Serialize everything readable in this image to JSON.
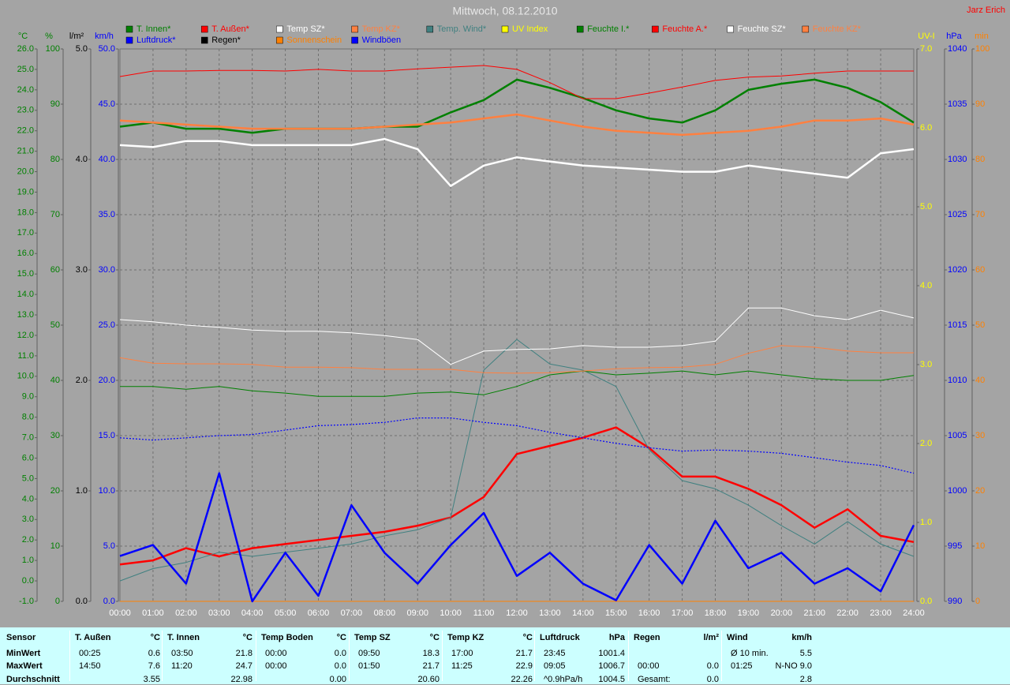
{
  "chart_data": {
    "type": "line",
    "title": "Mittwoch, 08.12.2010",
    "credit": "Jarz Erich",
    "xlim": [
      0,
      24
    ],
    "xticks": [
      {
        "value": 0,
        "label": "00:00"
      },
      {
        "value": 1,
        "label": "01:00"
      },
      {
        "value": 2,
        "label": "02:00"
      },
      {
        "value": 3,
        "label": "03:00"
      },
      {
        "value": 4,
        "label": "04:00"
      },
      {
        "value": 5,
        "label": "05:00"
      },
      {
        "value": 6,
        "label": "06:00"
      },
      {
        "value": 7,
        "label": "07:00"
      },
      {
        "value": 8,
        "label": "08:00"
      },
      {
        "value": 9,
        "label": "09:00"
      },
      {
        "value": 10,
        "label": "10:00"
      },
      {
        "value": 11,
        "label": "11:00"
      },
      {
        "value": 12,
        "label": "12:00"
      },
      {
        "value": 13,
        "label": "13:00"
      },
      {
        "value": 14,
        "label": "14:00"
      },
      {
        "value": 15,
        "label": "15:00"
      },
      {
        "value": 16,
        "label": "16:00"
      },
      {
        "value": 17,
        "label": "17:00"
      },
      {
        "value": 18,
        "label": "18:00"
      },
      {
        "value": 19,
        "label": "19:00"
      },
      {
        "value": 20,
        "label": "20:00"
      },
      {
        "value": 21,
        "label": "21:00"
      },
      {
        "value": 22,
        "label": "22:00"
      },
      {
        "value": 23,
        "label": "23:00"
      },
      {
        "value": 24,
        "label": "24:00"
      }
    ],
    "grid": true,
    "grid_axis": "hum",
    "axes": [
      {
        "id": "temp",
        "label": "°C",
        "side": "left",
        "color": "#008000",
        "lim": [
          -1,
          26
        ],
        "ticks": [
          {
            "value": -1,
            "label": "-1.0"
          },
          {
            "value": 0,
            "label": "0.0"
          },
          {
            "value": 1,
            "label": "1.0"
          },
          {
            "value": 2,
            "label": "2.0"
          },
          {
            "value": 3,
            "label": "3.0"
          },
          {
            "value": 4,
            "label": "4.0"
          },
          {
            "value": 5,
            "label": "5.0"
          },
          {
            "value": 6,
            "label": "6.0"
          },
          {
            "value": 7,
            "label": "7.0"
          },
          {
            "value": 8,
            "label": "8.0"
          },
          {
            "value": 9,
            "label": "9.0"
          },
          {
            "value": 10,
            "label": "10.0"
          },
          {
            "value": 11,
            "label": "11.0"
          },
          {
            "value": 12,
            "label": "12.0"
          },
          {
            "value": 13,
            "label": "13.0"
          },
          {
            "value": 14,
            "label": "14.0"
          },
          {
            "value": 15,
            "label": "15.0"
          },
          {
            "value": 16,
            "label": "16.0"
          },
          {
            "value": 17,
            "label": "17.0"
          },
          {
            "value": 18,
            "label": "18.0"
          },
          {
            "value": 19,
            "label": "19.0"
          },
          {
            "value": 20,
            "label": "20.0"
          },
          {
            "value": 21,
            "label": "21.0"
          },
          {
            "value": 22,
            "label": "22.0"
          },
          {
            "value": 23,
            "label": "23.0"
          },
          {
            "value": 24,
            "label": "24.0"
          },
          {
            "value": 25,
            "label": "25.0"
          },
          {
            "value": 26,
            "label": "26.0"
          }
        ]
      },
      {
        "id": "hum",
        "label": "%",
        "side": "left",
        "color": "#008000",
        "lim": [
          0,
          100
        ],
        "ticks": [
          0,
          10,
          20,
          30,
          40,
          50,
          60,
          70,
          80,
          90,
          100
        ]
      },
      {
        "id": "rain",
        "label": "l/m²",
        "side": "left",
        "color": "#000000",
        "lim": [
          0,
          5
        ],
        "ticks": [
          {
            "value": 0,
            "label": "0.0"
          },
          {
            "value": 1,
            "label": "1.0"
          },
          {
            "value": 2,
            "label": "2.0"
          },
          {
            "value": 3,
            "label": "3.0"
          },
          {
            "value": 4,
            "label": "4.0"
          },
          {
            "value": 5,
            "label": "5.0"
          }
        ]
      },
      {
        "id": "wind",
        "label": "km/h",
        "side": "left",
        "color": "#0000ff",
        "lim": [
          0,
          50
        ],
        "ticks": [
          {
            "value": 0,
            "label": "0.0"
          },
          {
            "value": 5,
            "label": "5.0"
          },
          {
            "value": 10,
            "label": "10.0"
          },
          {
            "value": 15,
            "label": "15.0"
          },
          {
            "value": 20,
            "label": "20.0"
          },
          {
            "value": 25,
            "label": "25.0"
          },
          {
            "value": 30,
            "label": "30.0"
          },
          {
            "value": 35,
            "label": "35.0"
          },
          {
            "value": 40,
            "label": "40.0"
          },
          {
            "value": 45,
            "label": "45.0"
          },
          {
            "value": 50,
            "label": "50.0"
          }
        ]
      },
      {
        "id": "uv",
        "label": "UV-I",
        "side": "right",
        "color": "#ffff00",
        "lim": [
          0,
          7
        ],
        "ticks": [
          {
            "value": 0,
            "label": "0.0"
          },
          {
            "value": 1,
            "label": "1.0"
          },
          {
            "value": 2,
            "label": "2.0"
          },
          {
            "value": 3,
            "label": "3.0"
          },
          {
            "value": 4,
            "label": "4.0"
          },
          {
            "value": 5,
            "label": "5.0"
          },
          {
            "value": 6,
            "label": "6.0"
          },
          {
            "value": 7,
            "label": "7.0"
          }
        ]
      },
      {
        "id": "press",
        "label": "hPa",
        "side": "right",
        "color": "#0000ff",
        "lim": [
          990,
          1040
        ],
        "ticks": [
          990,
          995,
          1000,
          1005,
          1010,
          1015,
          1020,
          1025,
          1030,
          1035,
          1040
        ]
      },
      {
        "id": "sun",
        "label": "min",
        "side": "right",
        "color": "#ff8000",
        "lim": [
          0,
          100
        ],
        "ticks": [
          0,
          10,
          20,
          30,
          40,
          50,
          60,
          70,
          80,
          90,
          100
        ]
      }
    ],
    "x": [
      0,
      1,
      2,
      3,
      4,
      5,
      6,
      7,
      8,
      9,
      10,
      11,
      12,
      13,
      14,
      15,
      16,
      17,
      18,
      19,
      20,
      21,
      22,
      23,
      24
    ],
    "series": [
      {
        "name": "T. Innen*",
        "color": "#008000",
        "axis": "temp",
        "line_style": "thick",
        "values": [
          22.2,
          22.4,
          22.1,
          22.1,
          21.9,
          22.1,
          22.1,
          22.1,
          22.2,
          22.2,
          22.9,
          23.5,
          24.5,
          24.1,
          23.6,
          23.0,
          22.6,
          22.4,
          23.0,
          24.0,
          24.3,
          24.5,
          24.1,
          23.4,
          22.4
        ]
      },
      {
        "name": "T. Außen*",
        "color": "#ff0000",
        "axis": "temp",
        "line_style": "thick",
        "values": [
          0.8,
          1.0,
          1.6,
          1.2,
          1.6,
          1.8,
          2.0,
          2.2,
          2.4,
          2.7,
          3.1,
          4.1,
          6.2,
          6.6,
          7.0,
          7.5,
          6.5,
          5.1,
          5.1,
          4.5,
          3.7,
          2.6,
          3.5,
          2.2,
          1.9
        ]
      },
      {
        "name": "Temp SZ*",
        "color": "#ffffff",
        "axis": "temp",
        "line_style": "thick",
        "values": [
          21.3,
          21.2,
          21.5,
          21.5,
          21.3,
          21.3,
          21.3,
          21.3,
          21.6,
          21.1,
          19.3,
          20.3,
          20.7,
          20.5,
          20.3,
          20.2,
          20.1,
          20.0,
          20.0,
          20.3,
          20.1,
          19.9,
          19.7,
          20.9,
          21.1
        ]
      },
      {
        "name": "Temp KZ*",
        "color": "#ff8040",
        "axis": "temp",
        "line_style": "thick",
        "values": [
          22.5,
          22.4,
          22.3,
          22.2,
          22.1,
          22.1,
          22.1,
          22.1,
          22.2,
          22.3,
          22.4,
          22.6,
          22.8,
          22.5,
          22.2,
          22.0,
          21.9,
          21.8,
          21.9,
          22.0,
          22.2,
          22.5,
          22.5,
          22.6,
          22.3
        ]
      },
      {
        "name": "Temp. Wind*",
        "color": "#408080",
        "axis": "temp",
        "line_style": "thin",
        "values": [
          0.0,
          0.6,
          0.9,
          1.4,
          1.2,
          1.4,
          1.6,
          1.8,
          2.2,
          2.5,
          3.1,
          10.3,
          11.8,
          10.6,
          10.3,
          9.5,
          6.4,
          4.9,
          4.5,
          3.7,
          2.7,
          1.8,
          2.9,
          1.8,
          1.2
        ]
      },
      {
        "name": "UV Index",
        "color": "#ffff00",
        "axis": "uv",
        "line_style": "thin",
        "values": [
          0,
          0,
          0,
          0,
          0,
          0,
          0,
          0,
          0,
          0,
          0,
          0,
          0,
          0,
          0,
          0,
          0,
          0,
          0,
          0,
          0,
          0,
          0,
          0,
          0
        ]
      },
      {
        "name": "Feuchte I.*",
        "color": "#008000",
        "axis": "hum",
        "line_style": "thin",
        "values": [
          38.9,
          38.9,
          38.4,
          38.9,
          38.1,
          37.7,
          37.1,
          37.1,
          37.1,
          37.7,
          37.9,
          37.4,
          38.9,
          41.0,
          41.7,
          41.0,
          41.3,
          41.7,
          41.0,
          41.7,
          41.0,
          40.3,
          40.0,
          40.0,
          40.9
        ]
      },
      {
        "name": "Feuchte A.*",
        "color": "#ff0000",
        "axis": "hum",
        "line_style": "thin",
        "values": [
          95.0,
          96.0,
          96.0,
          96.1,
          96.1,
          96.0,
          96.3,
          96.0,
          96.0,
          96.4,
          96.7,
          97.0,
          96.3,
          93.9,
          91.0,
          91.0,
          92.0,
          93.1,
          94.3,
          94.9,
          95.1,
          95.6,
          96.0,
          96.0,
          96.0
        ]
      },
      {
        "name": "Feuchte SZ*",
        "color": "#ffffff",
        "axis": "hum",
        "line_style": "thin",
        "values": [
          51.0,
          50.6,
          50.0,
          49.6,
          49.1,
          48.9,
          48.9,
          48.6,
          48.1,
          47.4,
          42.9,
          45.3,
          45.6,
          45.7,
          46.3,
          46.0,
          46.0,
          46.3,
          47.1,
          53.1,
          53.1,
          51.7,
          51.0,
          52.7,
          51.3
        ]
      },
      {
        "name": "Feuchte KZ*",
        "color": "#ff8040",
        "axis": "hum",
        "line_style": "thin",
        "values": [
          44.1,
          43.1,
          43.0,
          43.0,
          42.9,
          42.4,
          42.4,
          42.3,
          42.0,
          42.0,
          42.0,
          41.4,
          41.3,
          41.4,
          41.7,
          42.1,
          42.3,
          42.4,
          42.9,
          44.9,
          46.3,
          46.0,
          45.3,
          45.0,
          45.0
        ]
      },
      {
        "name": "Luftdruck*",
        "color": "#0000ff",
        "axis": "press",
        "line_style": "dotted",
        "values": [
          1004.8,
          1004.6,
          1004.8,
          1005.0,
          1005.1,
          1005.5,
          1005.9,
          1006.0,
          1006.2,
          1006.6,
          1006.6,
          1006.2,
          1005.9,
          1005.3,
          1004.8,
          1004.3,
          1003.9,
          1003.6,
          1003.7,
          1003.6,
          1003.4,
          1003.0,
          1002.6,
          1002.3,
          1001.6
        ]
      },
      {
        "name": "Regen*",
        "color": "#000000",
        "axis": "rain",
        "line_style": "thin",
        "values": [
          0,
          0,
          0,
          0,
          0,
          0,
          0,
          0,
          0,
          0,
          0,
          0,
          0,
          0,
          0,
          0,
          0,
          0,
          0,
          0,
          0,
          0,
          0,
          0,
          0
        ]
      },
      {
        "name": "Sonnenschein",
        "color": "#ff8000",
        "axis": "sun",
        "line_style": "thin",
        "values": [
          0,
          0,
          0,
          0,
          0,
          0,
          0,
          0,
          0,
          0,
          0,
          0,
          0,
          0,
          0,
          0,
          0,
          0,
          0,
          0,
          0,
          0,
          0,
          0,
          0
        ]
      },
      {
        "name": "Windböen",
        "color": "#0000ff",
        "axis": "wind",
        "line_style": "thick",
        "values": [
          4.1,
          5.1,
          1.6,
          11.6,
          0,
          4.4,
          0.5,
          8.7,
          4.4,
          1.6,
          5.1,
          8.0,
          2.3,
          4.4,
          1.6,
          0.1,
          5.1,
          1.6,
          7.3,
          3.0,
          4.4,
          1.6,
          3.0,
          0.9,
          6.9
        ]
      }
    ]
  },
  "table": {
    "corner": "Sensor",
    "row_labels": [
      "MinWert",
      "MaxWert",
      "Durchschnitt"
    ],
    "columns": [
      {
        "header": "T. Außen",
        "unit": "°C",
        "rows": [
          {
            "time": "00:25",
            "value": "0.6"
          },
          {
            "time": "14:50",
            "value": "7.6"
          },
          {
            "value": "3.55"
          }
        ]
      },
      {
        "header": "T. Innen",
        "unit": "°C",
        "rows": [
          {
            "time": "03:50",
            "value": "21.8"
          },
          {
            "time": "11:20",
            "value": "24.7"
          },
          {
            "value": "22.98"
          }
        ]
      },
      {
        "header": "Temp Boden",
        "unit": "°C",
        "rows": [
          {
            "time": "00:00",
            "value": "0.0"
          },
          {
            "time": "00:00",
            "value": "0.0"
          },
          {
            "value": "0.00"
          }
        ]
      },
      {
        "header": "Temp SZ",
        "unit": "°C",
        "rows": [
          {
            "time": "09:50",
            "value": "18.3"
          },
          {
            "time": "01:50",
            "value": "21.7"
          },
          {
            "value": "20.60"
          }
        ]
      },
      {
        "header": "Temp KZ",
        "unit": "°C",
        "rows": [
          {
            "time": "17:00",
            "value": "21.7"
          },
          {
            "time": "11:25",
            "value": "22.9"
          },
          {
            "value": "22.26"
          }
        ]
      },
      {
        "header": "Luftdruck",
        "unit": "hPa",
        "rows": [
          {
            "time": "23:45",
            "value": "1001.4"
          },
          {
            "time": "09:05",
            "value": "1006.7"
          },
          {
            "time": "^0.9hPa/h",
            "value": "1004.5"
          }
        ]
      },
      {
        "header": "Regen",
        "unit": "l/m²",
        "rows": [
          {},
          {
            "time": "00:00",
            "value": "0.0"
          },
          {
            "time": "Gesamt:",
            "value": "0.0"
          }
        ]
      },
      {
        "header": "Wind",
        "unit": "km/h",
        "rows": [
          {
            "time": "Ø 10 min.",
            "value": "5.5"
          },
          {
            "time": "01:25",
            "value": "N-NO 9.0"
          },
          {
            "value": "2.8"
          }
        ]
      }
    ]
  }
}
